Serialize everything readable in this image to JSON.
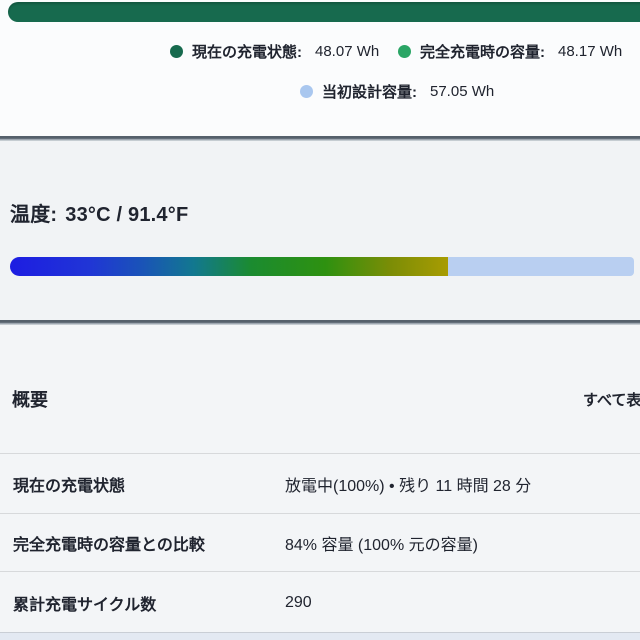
{
  "battery_chart": {
    "bar_color": "#176a4e",
    "legend": [
      {
        "label": "現在の充電状態:",
        "value": "48.07 Wh",
        "color": "#176a4e"
      },
      {
        "label": "完全充電時の容量:",
        "value": "48.17 Wh",
        "color": "#2aa565"
      },
      {
        "label": "当初設計容量:",
        "value": "57.05 Wh",
        "color": "#a9c7ef"
      }
    ]
  },
  "temperature": {
    "label": "温度:",
    "value": "33°C / 91.4°F",
    "gauge_gradient_colors": [
      "#1d1de2",
      "#12788f",
      "#1b8b30",
      "#a89c02"
    ],
    "gauge_remainder_color": "#b9cff1"
  },
  "overview": {
    "title": "概要",
    "show_all_label": "すべて表示",
    "rows": [
      {
        "label": "現在の充電状態",
        "value": "放電中(100%) • 残り 11 時間 28 分"
      },
      {
        "label": "完全充電時の容量との比較",
        "value": "84% 容量 (100% 元の容量)"
      },
      {
        "label": "累計充電サイクル数",
        "value": "290"
      }
    ]
  }
}
